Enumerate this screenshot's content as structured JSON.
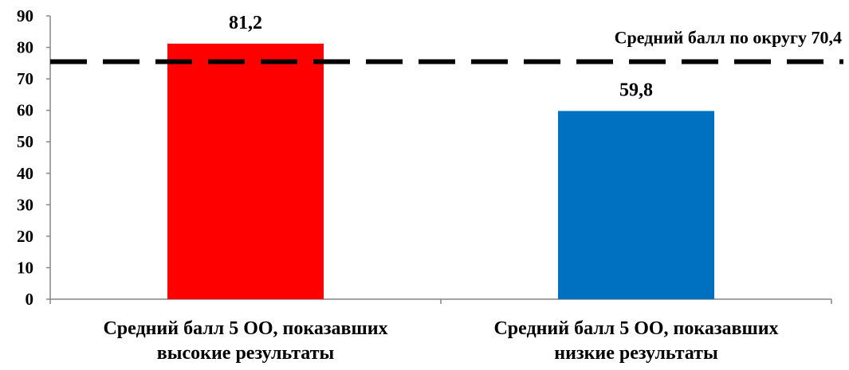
{
  "chart_data": {
    "type": "bar",
    "categories": [
      [
        "Средний балл 5 ОО, показавших",
        "высокие результаты"
      ],
      [
        "Средний балл 5 ОО, показавших",
        "низкие результаты"
      ]
    ],
    "values": [
      81.2,
      59.8
    ],
    "value_labels": [
      "81,2",
      "59,8"
    ],
    "bar_colors": [
      "#ff0000",
      "#0070c0"
    ],
    "ylim": [
      0,
      90
    ],
    "yticks": [
      0,
      10,
      20,
      30,
      40,
      50,
      60,
      70,
      80,
      90
    ],
    "grid": false,
    "legend": "none",
    "reference_line": {
      "value": 70.4,
      "label": "Средний балл по округу 70,4",
      "style": "dashed",
      "color": "#000000"
    },
    "title": "",
    "xlabel": "",
    "ylabel": ""
  }
}
